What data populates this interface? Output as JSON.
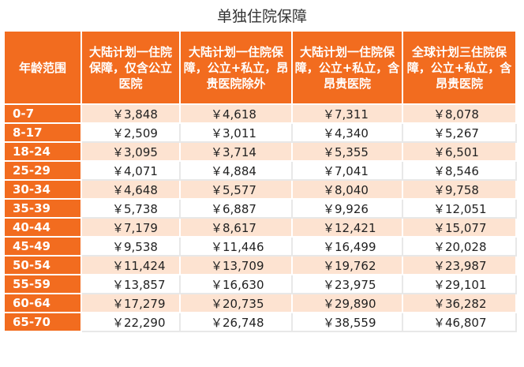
{
  "title": "单独住院保障",
  "columns": [
    "年龄范围",
    "大陆计划一住院保障，仅含公立医院",
    "大陆计划一住院保障，公立+私立，昂贵医院除外",
    "大陆计划一住院保障，公立+私立，含昂贵医院",
    "全球计划三住院保障，公立+私立，含昂贵医院"
  ],
  "rows": [
    [
      "0-7",
      "￥3,848",
      "￥4,618",
      "￥7,311",
      "￥8,078"
    ],
    [
      "8-17",
      "￥2,509",
      "￥3,011",
      "￥4,340",
      "￥5,267"
    ],
    [
      "18-24",
      "￥3,095",
      "￥3,714",
      "￥5,355",
      "￥6,501"
    ],
    [
      "25-29",
      "￥4,071",
      "￥4,884",
      "￥7,041",
      "￥8,546"
    ],
    [
      "30-34",
      "￥4,648",
      "￥5,577",
      "￥8,040",
      "￥9,758"
    ],
    [
      "35-39",
      "￥5,738",
      "￥6,887",
      "￥9,926",
      "￥12,051"
    ],
    [
      "40-44",
      "￥7,179",
      "￥8,617",
      "￥12,421",
      "￥15,077"
    ],
    [
      "45-49",
      "￥9,538",
      "￥11,446",
      "￥16,499",
      "￥20,028"
    ],
    [
      "50-54",
      "￥11,424",
      "￥13,709",
      "￥19,762",
      "￥23,987"
    ],
    [
      "55-59",
      "￥13,857",
      "￥16,630",
      "￥23,975",
      "￥29,101"
    ],
    [
      "60-64",
      "￥17,279",
      "￥20,735",
      "￥29,890",
      "￥36,282"
    ],
    [
      "65-70",
      "￥22,290",
      "￥26,748",
      "￥38,559",
      "￥46,807"
    ]
  ],
  "colors": {
    "header": "#f26c1f",
    "stripe": "#fde3d1"
  }
}
